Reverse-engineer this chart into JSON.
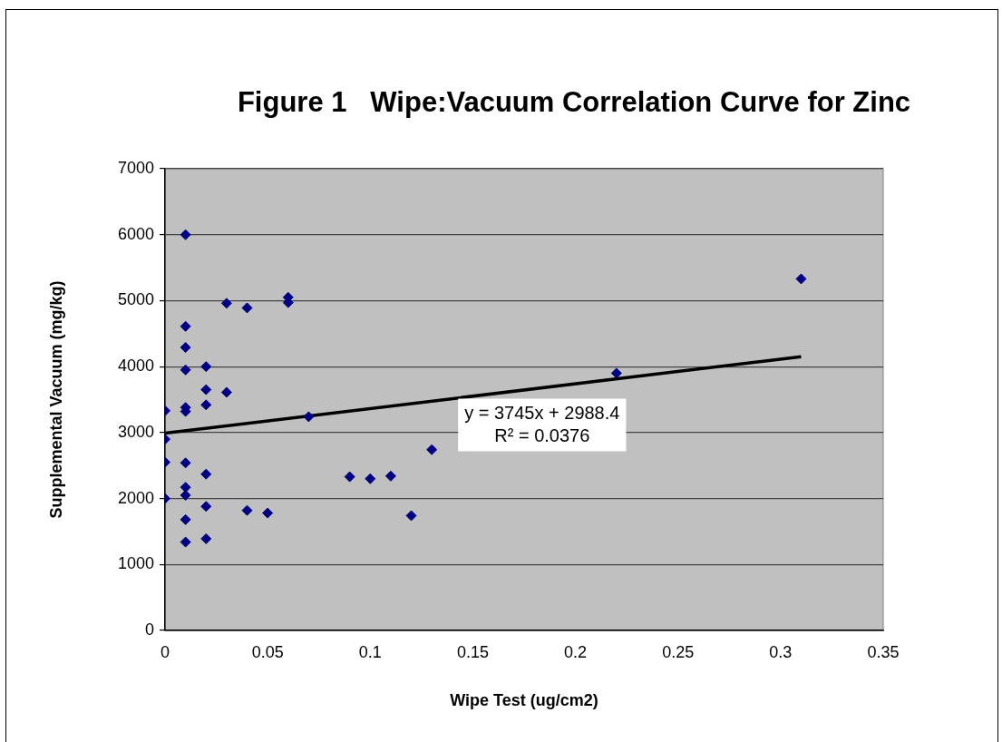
{
  "chart_data": {
    "type": "scatter",
    "title": "Figure 1   Wipe:Vacuum Correlation Curve for Zinc",
    "xlabel": "Wipe Test (ug/cm2)",
    "ylabel": "Supplemental Vacuum (mg/kg)",
    "x": [
      0,
      0,
      0,
      0,
      0.01,
      0.01,
      0.01,
      0.01,
      0.01,
      0.01,
      0.01,
      0.01,
      0.01,
      0.01,
      0.01,
      0.02,
      0.02,
      0.02,
      0.02,
      0.02,
      0.02,
      0.03,
      0.03,
      0.04,
      0.04,
      0.05,
      0.06,
      0.06,
      0.07,
      0.09,
      0.1,
      0.11,
      0.12,
      0.13,
      0.22,
      0.31
    ],
    "series": [
      {
        "type": "scatter",
        "color": "#000080",
        "values": [
          3330,
          2900,
          2550,
          2000,
          6000,
          4610,
          4290,
          3950,
          3380,
          3320,
          2540,
          2170,
          2050,
          1680,
          1340,
          4000,
          3650,
          3420,
          2370,
          1880,
          1390,
          4960,
          3610,
          4890,
          1820,
          1780,
          5050,
          4970,
          3240,
          2330,
          2300,
          2340,
          1740,
          2740,
          3900,
          5330
        ]
      },
      {
        "type": "line",
        "color": "#000000",
        "x": [
          0,
          0.31
        ],
        "values": [
          2990,
          4150
        ],
        "marker": "none"
      }
    ],
    "xlim": [
      0,
      0.35
    ],
    "xticks": [
      0,
      0.05,
      0.1,
      0.15,
      0.2,
      0.25,
      0.3,
      0.35
    ],
    "ylim": [
      0,
      7000
    ],
    "yticks": [
      0,
      1000,
      2000,
      3000,
      4000,
      5000,
      6000,
      7000
    ],
    "grid": "y",
    "marker": "diamond",
    "annotations": [
      "y = 3745x + 2988.4\nR² = 0.0376"
    ]
  }
}
